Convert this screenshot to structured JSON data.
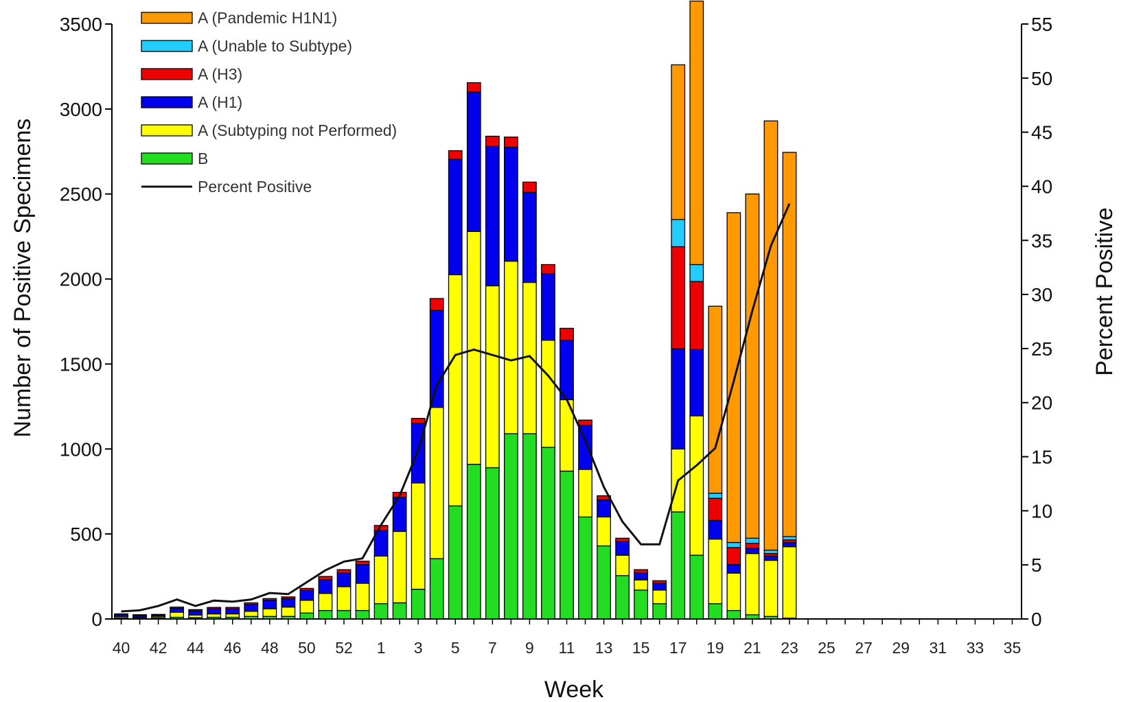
{
  "chart_data": {
    "type": "bar",
    "stacked": true,
    "xlabel": "Week",
    "ylabel": "Number of Positive Specimens",
    "y2label": "Percent Positive",
    "ylim": [
      0,
      3500
    ],
    "y2lim": [
      0,
      55
    ],
    "yticks": [
      0,
      500,
      1000,
      1500,
      2000,
      2500,
      3000,
      3500
    ],
    "y2ticks": [
      0,
      5,
      10,
      15,
      20,
      25,
      30,
      35,
      40,
      45,
      50,
      55
    ],
    "categories": [
      "40",
      "41",
      "42",
      "43",
      "44",
      "45",
      "46",
      "47",
      "48",
      "49",
      "50",
      "51",
      "52",
      "53",
      "1",
      "2",
      "3",
      "4",
      "5",
      "6",
      "7",
      "8",
      "9",
      "10",
      "11",
      "12",
      "13",
      "14",
      "15",
      "16",
      "17",
      "18",
      "19",
      "20",
      "21",
      "22",
      "23",
      "24",
      "25",
      "26",
      "27",
      "28",
      "29",
      "30",
      "31",
      "32",
      "33",
      "34",
      "35"
    ],
    "x_tick_labels": [
      "40",
      "42",
      "44",
      "46",
      "48",
      "50",
      "52",
      "1",
      "3",
      "5",
      "7",
      "9",
      "11",
      "13",
      "15",
      "17",
      "19",
      "21",
      "23",
      "25",
      "27",
      "29",
      "31",
      "33",
      "35"
    ],
    "legend_position": "top-left",
    "series": [
      {
        "name": "B",
        "color": "#22dd22",
        "values": [
          5,
          5,
          8,
          10,
          8,
          10,
          10,
          15,
          15,
          15,
          35,
          50,
          50,
          50,
          90,
          95,
          175,
          355,
          665,
          910,
          890,
          1090,
          1090,
          1010,
          870,
          600,
          430,
          255,
          170,
          90,
          630,
          375,
          90,
          50,
          25,
          15,
          5,
          0,
          0,
          0,
          0,
          0,
          0,
          0,
          0,
          0,
          0,
          0,
          0
        ]
      },
      {
        "name": "A (Subtyping not Performed)",
        "color": "#ffff00",
        "values": [
          8,
          6,
          8,
          30,
          15,
          20,
          20,
          30,
          45,
          55,
          75,
          100,
          140,
          160,
          280,
          420,
          625,
          890,
          1360,
          1370,
          1070,
          1015,
          890,
          630,
          420,
          280,
          170,
          120,
          60,
          80,
          370,
          820,
          380,
          220,
          360,
          330,
          420,
          0,
          0,
          0,
          0,
          0,
          0,
          0,
          0,
          0,
          0,
          0,
          0
        ]
      },
      {
        "name": "A (H1)",
        "color": "#0000ee",
        "values": [
          12,
          10,
          8,
          22,
          25,
          30,
          30,
          40,
          50,
          50,
          60,
          80,
          80,
          110,
          150,
          200,
          350,
          570,
          680,
          820,
          820,
          670,
          530,
          390,
          350,
          260,
          100,
          80,
          40,
          40,
          590,
          390,
          110,
          50,
          30,
          25,
          25,
          0,
          0,
          0,
          0,
          0,
          0,
          0,
          0,
          0,
          0,
          0,
          0
        ]
      },
      {
        "name": "A (H3)",
        "color": "#ee0000",
        "values": [
          5,
          4,
          3,
          8,
          7,
          8,
          8,
          10,
          10,
          10,
          10,
          20,
          20,
          20,
          30,
          30,
          30,
          70,
          50,
          55,
          60,
          60,
          60,
          55,
          70,
          30,
          25,
          20,
          20,
          15,
          600,
          400,
          130,
          100,
          30,
          15,
          15,
          0,
          0,
          0,
          0,
          0,
          0,
          0,
          0,
          0,
          0,
          0,
          0
        ]
      },
      {
        "name": "A (Unable to Subtype)",
        "color": "#22ccff",
        "values": [
          0,
          0,
          0,
          0,
          0,
          0,
          0,
          0,
          0,
          0,
          0,
          0,
          0,
          0,
          0,
          0,
          0,
          0,
          0,
          0,
          0,
          0,
          0,
          0,
          0,
          0,
          0,
          0,
          0,
          0,
          160,
          100,
          30,
          30,
          30,
          20,
          20,
          0,
          0,
          0,
          0,
          0,
          0,
          0,
          0,
          0,
          0,
          0,
          0
        ]
      },
      {
        "name": "A (Pandemic H1N1)",
        "color": "#ff9900",
        "values": [
          0,
          0,
          0,
          0,
          0,
          0,
          0,
          0,
          0,
          0,
          0,
          0,
          0,
          0,
          0,
          0,
          0,
          0,
          0,
          0,
          0,
          0,
          0,
          0,
          0,
          0,
          0,
          0,
          0,
          0,
          910,
          1550,
          1100,
          1940,
          2025,
          2525,
          2260,
          0,
          0,
          0,
          0,
          0,
          0,
          0,
          0,
          0,
          0,
          0,
          0
        ]
      }
    ],
    "line_series": {
      "name": "Percent Positive",
      "color": "#111111",
      "axis": "right",
      "values": [
        0.7,
        0.8,
        1.2,
        1.8,
        1.2,
        1.7,
        1.6,
        1.8,
        2.4,
        2.3,
        3.4,
        4.5,
        5.3,
        5.6,
        8.7,
        11.4,
        15.6,
        21.6,
        24.4,
        24.9,
        24.4,
        23.9,
        24.3,
        22.5,
        20.3,
        16.5,
        12.2,
        9.0,
        6.9,
        6.9,
        12.8,
        14.2,
        15.8,
        22.0,
        28.5,
        34.5,
        38.4
      ]
    }
  }
}
